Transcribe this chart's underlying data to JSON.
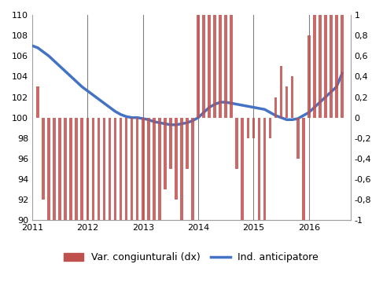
{
  "bar_color": "#c0504d",
  "line_color": "#4472c4",
  "vline_color": "#808080",
  "ylim_left": [
    90,
    110
  ],
  "ylim_right": [
    -1,
    1
  ],
  "yticks_left": [
    90,
    92,
    94,
    96,
    98,
    100,
    102,
    104,
    106,
    108,
    110
  ],
  "yticks_right": [
    -1,
    -0.8,
    -0.6,
    -0.4,
    -0.2,
    0,
    0.2,
    0.4,
    0.6,
    0.8,
    1
  ],
  "ytick_labels_right": [
    "-1",
    "-0,8",
    "-0,6",
    "-0,4",
    "-0,2",
    "0",
    "0,2",
    "0,4",
    "0,6",
    "0,8",
    "1"
  ],
  "legend_bar_label": "Var. congiunturali (dx)",
  "legend_line_label": "Ind. anticipatore",
  "vlines": [
    2012,
    2013,
    2014,
    2015,
    2016
  ],
  "bar_x": [
    2011.1,
    2011.2,
    2011.3,
    2011.4,
    2011.5,
    2011.6,
    2011.7,
    2011.8,
    2011.9,
    2012.0,
    2012.1,
    2012.2,
    2012.3,
    2012.4,
    2012.5,
    2012.6,
    2012.7,
    2012.8,
    2012.9,
    2013.0,
    2013.1,
    2013.2,
    2013.3,
    2013.4,
    2013.5,
    2013.6,
    2013.7,
    2013.8,
    2013.9,
    2014.0,
    2014.1,
    2014.2,
    2014.3,
    2014.4,
    2014.5,
    2014.6,
    2014.7,
    2014.8,
    2014.9,
    2015.0,
    2015.1,
    2015.2,
    2015.3,
    2015.4,
    2015.5,
    2015.6,
    2015.7,
    2015.8,
    2015.9,
    2016.0,
    2016.1,
    2016.2,
    2016.3,
    2016.4,
    2016.5,
    2016.6
  ],
  "bar_y": [
    0.3,
    -0.8,
    -1.2,
    -1.8,
    -1.7,
    -2.0,
    -2.1,
    -1.8,
    -1.6,
    -1.8,
    -3.2,
    -4.2,
    -5.0,
    -5.2,
    -4.8,
    -4.5,
    -3.8,
    -3.5,
    -5.8,
    -3.8,
    -3.5,
    -3.8,
    -4.2,
    -0.7,
    -0.5,
    -0.8,
    -1.2,
    -0.5,
    -1.2,
    1.0,
    2.0,
    5.5,
    7.5,
    6.5,
    5.0,
    5.0,
    -0.5,
    -2.5,
    -0.2,
    -0.2,
    -1.8,
    -3.2,
    -0.2,
    0.2,
    0.5,
    0.3,
    0.4,
    -0.4,
    -2.2,
    0.8,
    2.2,
    3.0,
    3.5,
    2.5,
    2.0,
    2.0
  ],
  "line_x": [
    2011.0,
    2011.1,
    2011.2,
    2011.3,
    2011.4,
    2011.5,
    2011.6,
    2011.7,
    2011.8,
    2011.9,
    2012.0,
    2012.1,
    2012.2,
    2012.3,
    2012.4,
    2012.5,
    2012.6,
    2012.7,
    2012.8,
    2012.9,
    2013.0,
    2013.1,
    2013.2,
    2013.3,
    2013.4,
    2013.5,
    2013.6,
    2013.7,
    2013.8,
    2013.9,
    2014.0,
    2014.1,
    2014.2,
    2014.3,
    2014.4,
    2014.5,
    2014.6,
    2014.7,
    2014.8,
    2014.9,
    2015.0,
    2015.1,
    2015.2,
    2015.3,
    2015.4,
    2015.5,
    2015.6,
    2015.7,
    2015.8,
    2015.9,
    2016.0,
    2016.1,
    2016.2,
    2016.3,
    2016.4,
    2016.5,
    2016.6
  ],
  "line_y_left": [
    107.0,
    106.8,
    106.4,
    106.0,
    105.5,
    105.0,
    104.5,
    104.0,
    103.5,
    103.0,
    102.6,
    102.2,
    101.8,
    101.4,
    101.0,
    100.6,
    100.3,
    100.1,
    100.0,
    100.0,
    99.9,
    99.8,
    99.6,
    99.5,
    99.4,
    99.3,
    99.3,
    99.4,
    99.5,
    99.7,
    100.0,
    100.5,
    101.0,
    101.3,
    101.5,
    101.5,
    101.4,
    101.3,
    101.2,
    101.1,
    101.0,
    100.9,
    100.8,
    100.5,
    100.2,
    100.0,
    99.8,
    99.8,
    99.9,
    100.2,
    100.5,
    101.0,
    101.5,
    102.0,
    102.5,
    103.0,
    104.3
  ],
  "background_color": "#ffffff",
  "tick_fontsize": 8,
  "legend_fontsize": 9
}
